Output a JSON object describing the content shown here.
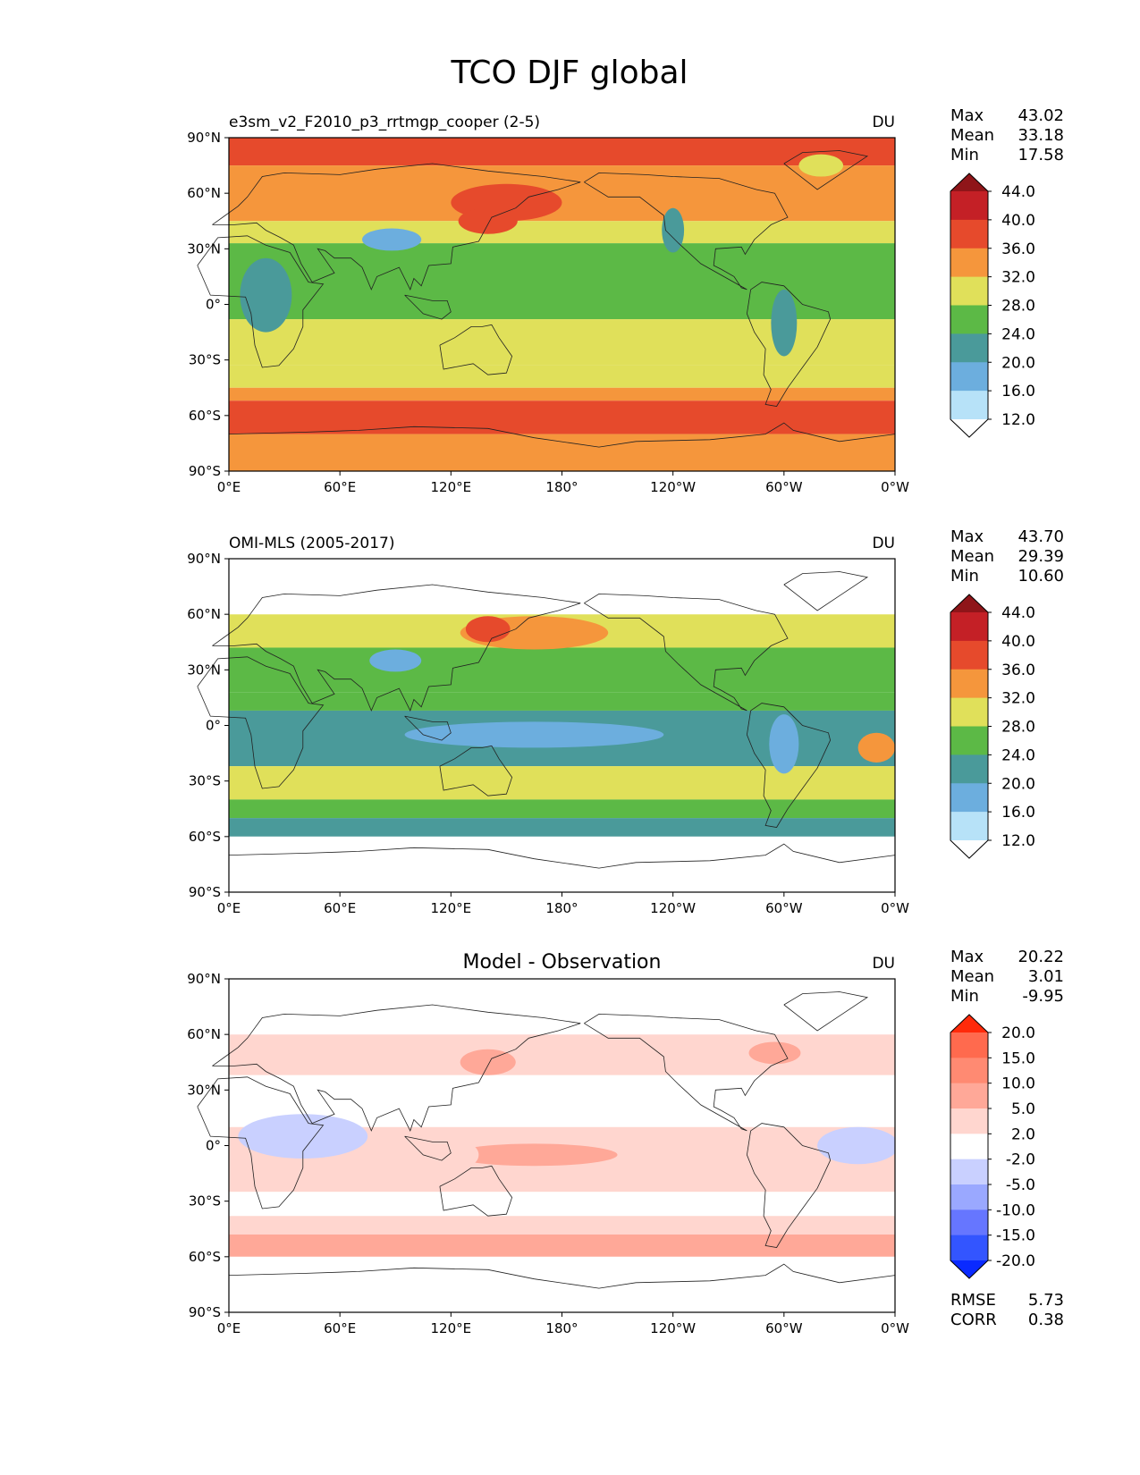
{
  "figure": {
    "title": "TCO DJF global"
  },
  "chart_data": [
    {
      "type": "heatmap",
      "panel": "model",
      "title_left": "e3sm_v2_F2010_p3_rrtmgp_cooper (2-5)",
      "title_center": "",
      "units": "DU",
      "stats": [
        {
          "label": "Max",
          "value": "43.02"
        },
        {
          "label": "Mean",
          "value": "33.18"
        },
        {
          "label": "Min",
          "value": "17.58"
        }
      ],
      "lat_ticks": [
        "90°N",
        "60°N",
        "30°N",
        "0°",
        "30°S",
        "60°S",
        "90°S"
      ],
      "lon_ticks": [
        "0°E",
        "60°E",
        "120°E",
        "180°",
        "120°W",
        "60°W",
        "0°W"
      ],
      "lat_range": [
        -90,
        90
      ],
      "data_lat_range": [
        -90,
        90
      ],
      "lon_range": [
        0,
        360
      ],
      "levels": [
        "44.0",
        "40.0",
        "36.0",
        "32.0",
        "28.0",
        "24.0",
        "20.0",
        "16.0",
        "12.0"
      ],
      "colors": [
        "#8f1519",
        "#c42026",
        "#e64a2c",
        "#f5963c",
        "#e0e05a",
        "#5cb946",
        "#4a9a9a",
        "#6caede",
        "#b7e2f8",
        "#ffffff"
      ],
      "zonal_bands": [
        {
          "lat_from": 90,
          "lat_to": 75,
          "level": "40.0"
        },
        {
          "lat_from": 75,
          "lat_to": 45,
          "level": "36.0"
        },
        {
          "lat_from": 45,
          "lat_to": 33,
          "level": "32.0"
        },
        {
          "lat_from": 33,
          "lat_to": -8,
          "level": "28.0"
        },
        {
          "lat_from": -8,
          "lat_to": -33,
          "level": "32.0"
        },
        {
          "lat_from": -33,
          "lat_to": -45,
          "level": "32.0"
        },
        {
          "lat_from": -45,
          "lat_to": -52,
          "level": "36.0"
        },
        {
          "lat_from": -52,
          "lat_to": -70,
          "level": "40.0"
        },
        {
          "lat_from": -70,
          "lat_to": -90,
          "level": "36.0"
        }
      ],
      "features": [
        {
          "lon": 150,
          "lat": 55,
          "rx": 30,
          "ry": 10,
          "level": "40.0"
        },
        {
          "lon": 140,
          "lat": 45,
          "rx": 16,
          "ry": 7,
          "level": "40.0"
        },
        {
          "lon": 20,
          "lat": 5,
          "rx": 14,
          "ry": 20,
          "level": "24.0"
        },
        {
          "lon": 88,
          "lat": 35,
          "rx": 16,
          "ry": 6,
          "level": "20.0"
        },
        {
          "lon": 300,
          "lat": -10,
          "rx": 7,
          "ry": 18,
          "level": "24.0"
        },
        {
          "lon": 240,
          "lat": 40,
          "rx": 6,
          "ry": 12,
          "level": "24.0"
        },
        {
          "lon": 320,
          "lat": 75,
          "rx": 12,
          "ry": 6,
          "level": "32.0"
        }
      ]
    },
    {
      "type": "heatmap",
      "panel": "observation",
      "title_left": "OMI-MLS (2005-2017)",
      "title_center": "",
      "units": "DU",
      "stats": [
        {
          "label": "Max",
          "value": "43.70"
        },
        {
          "label": "Mean",
          "value": "29.39"
        },
        {
          "label": "Min",
          "value": "10.60"
        }
      ],
      "lat_ticks": [
        "90°N",
        "60°N",
        "30°N",
        "0°",
        "30°S",
        "60°S",
        "90°S"
      ],
      "lon_ticks": [
        "0°E",
        "60°E",
        "120°E",
        "180°",
        "120°W",
        "60°W",
        "0°W"
      ],
      "lat_range": [
        -90,
        90
      ],
      "data_lat_range": [
        -60,
        60
      ],
      "lon_range": [
        0,
        360
      ],
      "levels": [
        "44.0",
        "40.0",
        "36.0",
        "32.0",
        "28.0",
        "24.0",
        "20.0",
        "16.0",
        "12.0"
      ],
      "colors": [
        "#8f1519",
        "#c42026",
        "#e64a2c",
        "#f5963c",
        "#e0e05a",
        "#5cb946",
        "#4a9a9a",
        "#6caede",
        "#b7e2f8",
        "#ffffff"
      ],
      "zonal_bands": [
        {
          "lat_from": 60,
          "lat_to": 42,
          "level": "32.0"
        },
        {
          "lat_from": 42,
          "lat_to": 18,
          "level": "28.0"
        },
        {
          "lat_from": 18,
          "lat_to": 8,
          "level": "28.0"
        },
        {
          "lat_from": 8,
          "lat_to": -22,
          "level": "24.0"
        },
        {
          "lat_from": -22,
          "lat_to": -40,
          "level": "32.0"
        },
        {
          "lat_from": -40,
          "lat_to": -50,
          "level": "28.0"
        },
        {
          "lat_from": -50,
          "lat_to": -60,
          "level": "24.0"
        }
      ],
      "features": [
        {
          "lon": 165,
          "lat": 50,
          "rx": 40,
          "ry": 9,
          "level": "36.0"
        },
        {
          "lon": 140,
          "lat": 52,
          "rx": 12,
          "ry": 7,
          "level": "40.0"
        },
        {
          "lon": 165,
          "lat": -5,
          "rx": 70,
          "ry": 7,
          "level": "20.0"
        },
        {
          "lon": 350,
          "lat": -12,
          "rx": 10,
          "ry": 8,
          "level": "36.0"
        },
        {
          "lon": 90,
          "lat": 35,
          "rx": 14,
          "ry": 6,
          "level": "20.0"
        },
        {
          "lon": 300,
          "lat": -10,
          "rx": 8,
          "ry": 16,
          "level": "20.0"
        }
      ]
    },
    {
      "type": "heatmap",
      "panel": "difference",
      "title_left": "",
      "title_center": "Model - Observation",
      "units": "DU",
      "stats": [
        {
          "label": "Max",
          "value": "20.22"
        },
        {
          "label": "Mean",
          "value": "3.01"
        },
        {
          "label": "Min",
          "value": "-9.95"
        }
      ],
      "metrics": [
        {
          "label": "RMSE",
          "value": "5.73"
        },
        {
          "label": "CORR",
          "value": "0.38"
        }
      ],
      "lat_ticks": [
        "90°N",
        "60°N",
        "30°N",
        "0°",
        "30°S",
        "60°S",
        "90°S"
      ],
      "lon_ticks": [
        "0°E",
        "60°E",
        "120°E",
        "180°",
        "120°W",
        "60°W",
        "0°W"
      ],
      "lat_range": [
        -90,
        90
      ],
      "data_lat_range": [
        -60,
        60
      ],
      "lon_range": [
        0,
        360
      ],
      "levels": [
        "20.0",
        "15.0",
        "10.0",
        "5.0",
        "2.0",
        "-2.0",
        "-5.0",
        "-10.0",
        "-15.0",
        "-20.0"
      ],
      "colors": [
        "#ff2a0a",
        "#ff6a4e",
        "#ff8a72",
        "#ffa898",
        "#ffd6cf",
        "#ffffff",
        "#c9d0ff",
        "#9aa8ff",
        "#6676ff",
        "#3355ff",
        "#0a2aff"
      ],
      "zonal_bands": [
        {
          "lat_from": 60,
          "lat_to": 38,
          "level": "5.0"
        },
        {
          "lat_from": 38,
          "lat_to": 20,
          "level": "2.0"
        },
        {
          "lat_from": 20,
          "lat_to": 10,
          "level": "2.0"
        },
        {
          "lat_from": 10,
          "lat_to": -25,
          "level": "5.0"
        },
        {
          "lat_from": -25,
          "lat_to": -38,
          "level": "2.0"
        },
        {
          "lat_from": -38,
          "lat_to": -48,
          "level": "5.0"
        },
        {
          "lat_from": -48,
          "lat_to": -60,
          "level": "10.0"
        }
      ],
      "features": [
        {
          "lon": 40,
          "lat": 5,
          "rx": 35,
          "ry": 12,
          "level": "-2.0"
        },
        {
          "lon": 340,
          "lat": 0,
          "rx": 22,
          "ry": 10,
          "level": "-2.0"
        },
        {
          "lon": 165,
          "lat": -5,
          "rx": 45,
          "ry": 6,
          "level": "10.0"
        },
        {
          "lon": 140,
          "lat": 45,
          "rx": 15,
          "ry": 7,
          "level": "10.0"
        },
        {
          "lon": 295,
          "lat": 50,
          "rx": 14,
          "ry": 6,
          "level": "10.0"
        },
        {
          "lon": 115,
          "lat": -5,
          "rx": 20,
          "ry": 10,
          "level": "5.0"
        }
      ]
    }
  ]
}
